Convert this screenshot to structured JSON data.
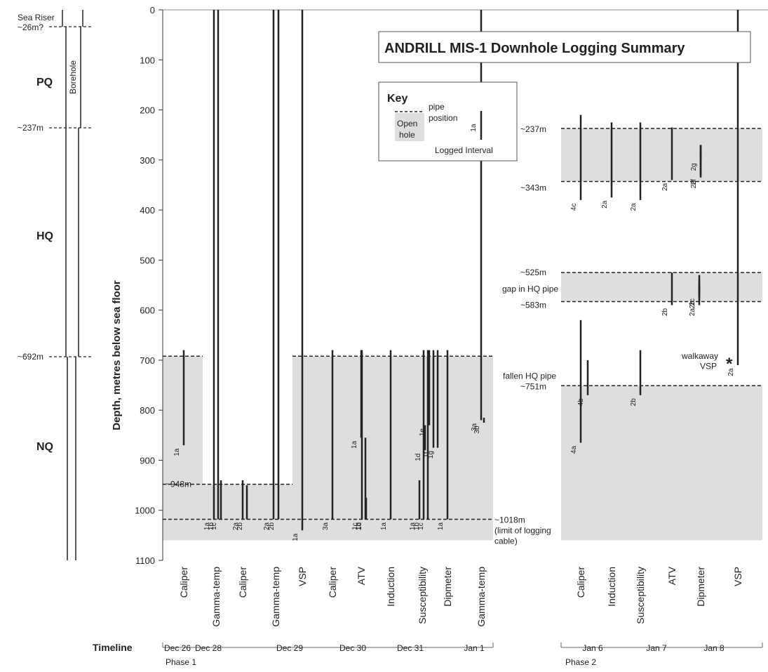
{
  "title": "ANDRILL MIS-1  Downhole Logging Summary",
  "y_axis": {
    "label": "Depth, metres below sea floor",
    "range": [
      0,
      1100
    ],
    "ticks": [
      0,
      100,
      200,
      300,
      400,
      500,
      600,
      700,
      800,
      900,
      1000,
      1100
    ]
  },
  "borehole": {
    "label": "Borehole",
    "sea_riser_label": "Sea Riser",
    "sections": [
      {
        "name": "PQ",
        "from": 26,
        "to": 237
      },
      {
        "name": "HQ",
        "from": 237,
        "to": 692
      },
      {
        "name": "NQ",
        "from": 692,
        "to": 1100
      }
    ],
    "depth_markers": [
      {
        "label": "~26m?",
        "depth": 26
      },
      {
        "label": "~237m",
        "depth": 237
      },
      {
        "label": "~692m",
        "depth": 692
      }
    ]
  },
  "key": {
    "title": "Key",
    "pipe_position_label": "pipe\nposition",
    "open_hole_label": "Open\nhole",
    "logged_interval_label": "Logged Interval",
    "example_run": "1a"
  },
  "annotations": {
    "d948": "~948m",
    "d1018": "~1018m",
    "d1018_note": "(limit of logging\ncable)",
    "d237": "~237m",
    "d343": "~343m",
    "d525": "~525m",
    "d583": "~583m",
    "gap": "gap in HQ pipe",
    "fallen": "fallen HQ pipe",
    "d751": "~751m",
    "walkaway": "walkaway\nVSP",
    "asterisk": "*"
  },
  "chart_data": {
    "type": "timeline",
    "phase1": {
      "label": "Phase 1",
      "open_hole": [
        {
          "from": 692,
          "to": 1060,
          "tools": "Caliper"
        },
        {
          "from": 948,
          "to": 1060,
          "tools": "Gamma-temp to Gamma-temp"
        },
        {
          "from": 692,
          "to": 1060,
          "tools": "VSP to Gamma-temp"
        }
      ],
      "tools": [
        {
          "name": "Caliper",
          "runs": [
            {
              "label": "1a",
              "from": 680,
              "to": 870
            }
          ]
        },
        {
          "name": "Gamma-temp",
          "runs": [
            {
              "label": "1a",
              "from": 0,
              "to": 1018
            },
            {
              "label": "1b",
              "from": 0,
              "to": 1018
            },
            {
              "label": "1c",
              "from": 940,
              "to": 1018
            }
          ]
        },
        {
          "name": "Caliper",
          "runs": [
            {
              "label": "2a",
              "from": 940,
              "to": 1018
            },
            {
              "label": "2b",
              "from": 950,
              "to": 1018
            }
          ]
        },
        {
          "name": "Gamma-temp",
          "runs": [
            {
              "label": "2a",
              "from": 0,
              "to": 1018
            },
            {
              "label": "2b",
              "from": 0,
              "to": 1018
            }
          ]
        },
        {
          "name": "VSP",
          "runs": [
            {
              "label": "1a",
              "from": 0,
              "to": 1040
            }
          ]
        },
        {
          "name": "Caliper",
          "runs": [
            {
              "label": "3a",
              "from": 680,
              "to": 1018
            }
          ]
        },
        {
          "name": "ATV",
          "runs": [
            {
              "label": "1a",
              "from": 680,
              "to": 855
            },
            {
              "label": "1b",
              "from": 855,
              "to": 1018
            },
            {
              "label": "1c",
              "from": 680,
              "to": 1018
            },
            {
              "label": "1d",
              "from": 975,
              "to": 1018
            }
          ]
        },
        {
          "name": "Induction",
          "runs": [
            {
              "label": "1a",
              "from": 680,
              "to": 1018
            }
          ]
        },
        {
          "name": "Susceptibility",
          "runs": [
            {
              "label": "1a",
              "from": 940,
              "to": 1018
            },
            {
              "label": "1b",
              "from": 680,
              "to": 1018
            },
            {
              "label": "1c",
              "from": 680,
              "to": 1018
            },
            {
              "label": "1d",
              "from": 830,
              "to": 880
            },
            {
              "label": "1e",
              "from": 680,
              "to": 830
            },
            {
              "label": "1f",
              "from": 680,
              "to": 875
            },
            {
              "label": "1g",
              "from": 680,
              "to": 875
            }
          ]
        },
        {
          "name": "Dipmeter",
          "runs": [
            {
              "label": "1a",
              "from": 680,
              "to": 1018
            }
          ]
        },
        {
          "name": "Gamma-temp",
          "runs": [
            {
              "label": "3a",
              "from": 0,
              "to": 820
            },
            {
              "label": "3b",
              "from": 815,
              "to": 825
            }
          ]
        }
      ],
      "timeline_days": [
        "Dec 26",
        "Dec 28",
        "Dec 29",
        "Dec 30",
        "Dec 31",
        "Jan 1"
      ]
    },
    "phase2": {
      "label": "Phase 2",
      "open_hole": [
        {
          "from": 237,
          "to": 343
        },
        {
          "from": 525,
          "to": 583
        },
        {
          "from": 751,
          "to": 1060
        }
      ],
      "tools": [
        {
          "name": "Caliper",
          "runs": [
            {
              "label": "4c",
              "from": 210,
              "to": 380
            },
            {
              "label": "4a",
              "from": 620,
              "to": 865
            },
            {
              "label": "4b",
              "from": 700,
              "to": 770
            }
          ]
        },
        {
          "name": "Induction",
          "runs": [
            {
              "label": "2a",
              "from": 225,
              "to": 375
            }
          ]
        },
        {
          "name": "Susceptibility",
          "runs": [
            {
              "label": "2a",
              "from": 225,
              "to": 380
            },
            {
              "label": "2b",
              "from": 680,
              "to": 770
            }
          ]
        },
        {
          "name": "ATV",
          "runs": [
            {
              "label": "2a",
              "from": 235,
              "to": 340
            },
            {
              "label": "2b",
              "from": 525,
              "to": 590
            }
          ]
        },
        {
          "name": "Dipmeter",
          "runs": [
            {
              "label": "2d",
              "from": 270,
              "to": 335
            },
            {
              "label": "2f",
              "from": 280,
              "to": 330
            },
            {
              "label": "2g",
              "from": 270,
              "to": 300
            },
            {
              "label": "2a",
              "from": 530,
              "to": 590
            },
            {
              "label": "2b",
              "from": 540,
              "to": 575
            },
            {
              "label": "2c",
              "from": 550,
              "to": 570
            }
          ]
        },
        {
          "name": "VSP",
          "runs": [
            {
              "label": "2a",
              "from": 0,
              "to": 710
            }
          ]
        }
      ],
      "timeline_days": [
        "Jan 6",
        "Jan 7",
        "Jan 8"
      ]
    },
    "timeline_label": "Timeline"
  }
}
